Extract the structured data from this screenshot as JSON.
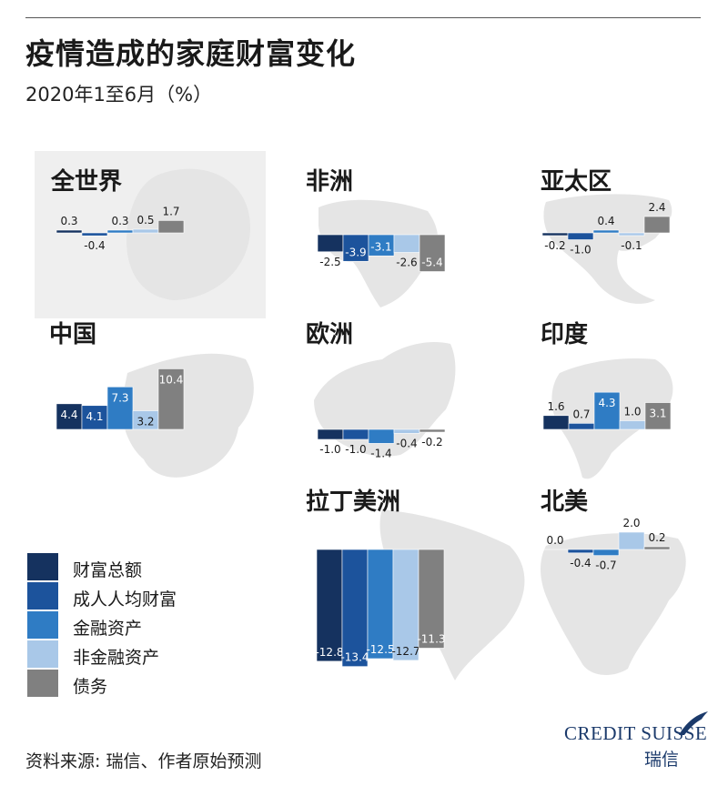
{
  "title": "疫情造成的家庭财富变化",
  "subtitle": "2020年1至6月（%）",
  "source": "资料来源: 瑞信、作者原始预测",
  "logo": {
    "name": "Credit Suisse",
    "text": "CREDIT SUISSE",
    "sub": "瑞信"
  },
  "legend_title_hidden": "",
  "colors": {
    "财富总额": "#15325f",
    "成人人均财富": "#1c539c",
    "金融资产": "#2f7cc4",
    "非金融资产": "#a9c8e8",
    "债务": "#808080",
    "map": "#e5e5e5",
    "panel_bg": "#efefef"
  },
  "chart_data": {
    "type": "bar",
    "title": "疫情造成的家庭财富变化",
    "subtitle": "2020年1至6月（%）",
    "unit": "%",
    "categories": [
      "财富总额",
      "成人人均财富",
      "金融资产",
      "非金融资产",
      "债务"
    ],
    "legend": [
      "财富总额",
      "成人人均财富",
      "金融资产",
      "非金融资产",
      "债务"
    ],
    "legend_position": "bottom-left",
    "grid": false,
    "panels": [
      {
        "region": "全世界",
        "values": [
          0.3,
          -0.4,
          0.3,
          0.5,
          1.7
        ],
        "labels": [
          "0.3",
          "-0.4",
          "0.3",
          "0.5",
          "1.7"
        ]
      },
      {
        "region": "非洲",
        "values": [
          -2.5,
          -3.9,
          -3.1,
          -2.6,
          -5.4
        ],
        "labels": [
          "-2.5",
          "-3.9",
          "-3.1",
          "-2.6",
          "-5.4"
        ]
      },
      {
        "region": "亚太区",
        "values": [
          -0.2,
          -1.0,
          0.4,
          -0.1,
          2.4
        ],
        "labels": [
          "-0.2",
          "-1.0",
          "0.4",
          "-0.1",
          "2.4"
        ]
      },
      {
        "region": "中国",
        "values": [
          4.4,
          4.1,
          7.3,
          3.2,
          10.4
        ],
        "labels": [
          "4.4",
          "4.1",
          "7.3",
          "3.2",
          "10.4"
        ]
      },
      {
        "region": "欧洲",
        "values": [
          -1.0,
          -1.0,
          -1.4,
          -0.4,
          -0.2
        ],
        "labels": [
          "-1.0",
          "-1.0",
          "-1.4",
          "-0.4",
          "-0.2"
        ]
      },
      {
        "region": "印度",
        "values": [
          1.6,
          0.7,
          4.3,
          1.0,
          3.1
        ],
        "labels": [
          "1.6",
          "0.7",
          "4.3",
          "1.0",
          "3.1"
        ]
      },
      {
        "region": "拉丁美洲",
        "values": [
          -12.8,
          -13.4,
          -12.5,
          -12.7,
          -11.3
        ],
        "labels": [
          "-12.8",
          "-13.4",
          "-12.5",
          "-12.7",
          "-11.3"
        ]
      },
      {
        "region": "北美",
        "values": [
          0.0,
          -0.4,
          -0.7,
          2.0,
          0.2
        ],
        "labels": [
          "0.0",
          "-0.4",
          "-0.7",
          "2.0",
          "0.2"
        ]
      }
    ]
  }
}
